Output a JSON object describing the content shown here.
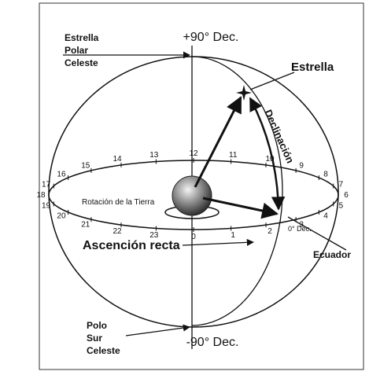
{
  "diagram": {
    "north_dec": "+90° Dec.",
    "south_dec": "-90° Dec.",
    "north_pole_label": [
      "Estrella",
      "Polar",
      "Celeste"
    ],
    "south_pole_label": [
      "Polo",
      "Sur",
      "Celeste"
    ],
    "star_label": "Estrella",
    "declination_label": "Declinación",
    "rotation_label": "Rotación de la Tierra",
    "right_ascension_label": "Ascención recta",
    "equator_label": "Ecuador",
    "zero_dec_label": "0° Déc.",
    "hour_labels": [
      "0",
      "1",
      "2",
      "3",
      "4",
      "5",
      "6",
      "7",
      "8",
      "9",
      "10",
      "11",
      "12",
      "13",
      "14",
      "15",
      "16",
      "17",
      "18",
      "19",
      "20",
      "21",
      "22",
      "23"
    ]
  }
}
